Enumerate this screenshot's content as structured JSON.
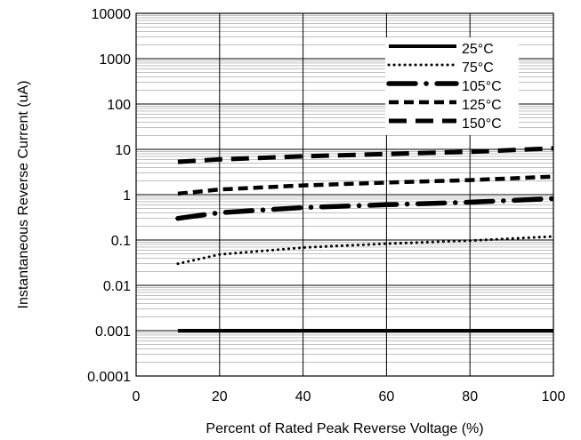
{
  "chart_data": {
    "type": "line",
    "title": "",
    "xlabel": "Percent of Rated Peak Reverse Voltage (%)",
    "ylabel": "Instantaneous Reverse Current (uA)",
    "x_scale": "linear",
    "y_scale": "log",
    "xlim": [
      0,
      100
    ],
    "ylim": [
      0.0001,
      10000
    ],
    "x_ticks": [
      "0",
      "20",
      "40",
      "60",
      "80",
      "100"
    ],
    "y_ticks": [
      "0.0001",
      "0.001",
      "0.01",
      "0.1",
      "1",
      "10",
      "100",
      "1000",
      "10000"
    ],
    "grid": "major vertical, major and minor horizontal",
    "legend_position": "top-right",
    "series": [
      {
        "name": "25°C",
        "style": "solid",
        "x": [
          10,
          100
        ],
        "y": [
          0.001,
          0.001
        ]
      },
      {
        "name": "75°C",
        "style": "dotted",
        "x": [
          10,
          20,
          40,
          60,
          80,
          100
        ],
        "y": [
          0.03,
          0.048,
          0.068,
          0.083,
          0.097,
          0.12
        ]
      },
      {
        "name": "105°C",
        "style": "long-dash-dot",
        "x": [
          10,
          20,
          40,
          60,
          80,
          100
        ],
        "y": [
          0.3,
          0.4,
          0.52,
          0.6,
          0.68,
          0.82
        ]
      },
      {
        "name": "125°C",
        "style": "dashed",
        "x": [
          10,
          20,
          40,
          60,
          80,
          100
        ],
        "y": [
          1.05,
          1.3,
          1.6,
          1.85,
          2.1,
          2.5
        ]
      },
      {
        "name": "150°C",
        "style": "long-dash",
        "x": [
          10,
          20,
          40,
          60,
          80,
          100
        ],
        "y": [
          5.3,
          6.0,
          7.0,
          7.9,
          8.8,
          10.5
        ]
      }
    ]
  }
}
